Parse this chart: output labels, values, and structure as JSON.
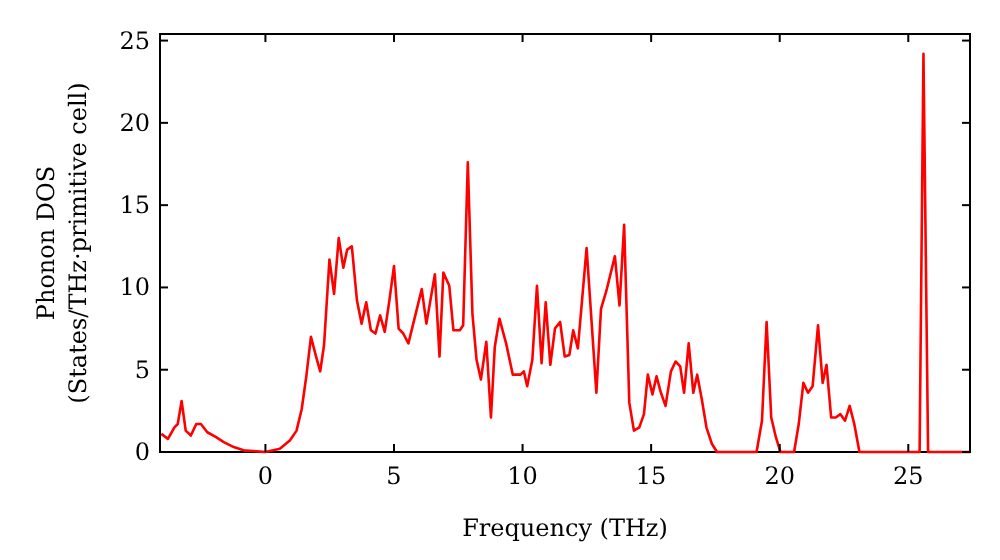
{
  "chart_data": {
    "type": "line",
    "xlabel": "Frequency (THz)",
    "ylabel": "Phonon DOS\n(States/THz·primitive cell)",
    "xlim": [
      -4.1,
      27.4
    ],
    "ylim": [
      0,
      25.4
    ],
    "xticks": [
      0,
      5,
      10,
      15,
      20,
      25
    ],
    "yticks": [
      0,
      5,
      10,
      15,
      20,
      25
    ],
    "grid": false,
    "marker": "none",
    "line_style": "solid",
    "series": [
      {
        "color": "#ff0000",
        "x": [
          -4.05,
          -3.79,
          -3.54,
          -3.41,
          -3.26,
          -3.1,
          -2.9,
          -2.69,
          -2.51,
          -2.26,
          -1.92,
          -1.62,
          -1.23,
          -0.85,
          0,
          0.56,
          0.95,
          1.21,
          1.41,
          1.59,
          1.77,
          1.97,
          2.13,
          2.28,
          2.49,
          2.67,
          2.85,
          3.03,
          3.18,
          3.36,
          3.56,
          3.74,
          3.92,
          4.1,
          4.28,
          4.46,
          4.64,
          4.82,
          5,
          5.18,
          5.36,
          5.56,
          6.08,
          6.26,
          6.59,
          6.77,
          6.92,
          7.15,
          7.31,
          7.56,
          7.69,
          7.87,
          8.05,
          8.21,
          8.38,
          8.59,
          8.77,
          8.92,
          9.1,
          9.36,
          9.62,
          9.92,
          10.05,
          10.18,
          10.38,
          10.56,
          10.74,
          10.9,
          11.08,
          11.26,
          11.46,
          11.64,
          11.82,
          11.97,
          12.15,
          12.49,
          12.87,
          13.05,
          13.26,
          13.59,
          13.77,
          13.95,
          14.15,
          14.33,
          14.54,
          14.72,
          14.87,
          15.05,
          15.21,
          15.38,
          15.56,
          15.77,
          15.95,
          16.13,
          16.28,
          16.46,
          16.64,
          16.79,
          16.97,
          17.15,
          17.36,
          17.56,
          19.1,
          19.31,
          19.49,
          19.67,
          19.85,
          20.03,
          20.56,
          20.74,
          20.92,
          21.1,
          21.28,
          21.49,
          21.67,
          21.82,
          22,
          22.18,
          22.36,
          22.54,
          22.72,
          22.9,
          23.1,
          25.44,
          25.59,
          25.77,
          27.4
        ],
        "values": [
          1.1,
          0.8,
          1.5,
          1.7,
          3.1,
          1.3,
          1,
          1.7,
          1.7,
          1.2,
          0.9,
          0.6,
          0.3,
          0.1,
          0,
          0.2,
          0.7,
          1.3,
          2.6,
          4.6,
          7,
          5.8,
          4.9,
          6.5,
          11.7,
          9.6,
          13,
          11.2,
          12.3,
          12.5,
          9.2,
          7.8,
          9.1,
          7.4,
          7.2,
          8.3,
          7.3,
          9.2,
          11.3,
          7.5,
          7.2,
          6.6,
          9.9,
          7.8,
          10.8,
          5.8,
          10.9,
          10.1,
          7.4,
          7.4,
          7.7,
          17.6,
          8.4,
          5.6,
          4.4,
          6.7,
          2.1,
          6.4,
          8.1,
          6.6,
          4.7,
          4.7,
          4.9,
          4,
          5.6,
          10.1,
          5.4,
          9.1,
          5.3,
          7.5,
          7.9,
          5.8,
          5.9,
          7.4,
          6.3,
          12.4,
          3.6,
          8.7,
          9.8,
          11.9,
          8.9,
          13.8,
          3,
          1.3,
          1.5,
          2.3,
          4.7,
          3.5,
          4.6,
          3.6,
          2.8,
          4.9,
          5.5,
          5.2,
          3.6,
          6.6,
          3.6,
          4.7,
          3.2,
          1.5,
          0.5,
          0,
          0,
          1.9,
          7.9,
          2.1,
          0.9,
          0,
          0,
          1.7,
          4.2,
          3.6,
          4,
          7.7,
          4.2,
          5.3,
          2.1,
          2.1,
          2.3,
          1.9,
          2.8,
          1.7,
          0,
          0,
          24.2,
          0,
          0
        ]
      }
    ]
  }
}
